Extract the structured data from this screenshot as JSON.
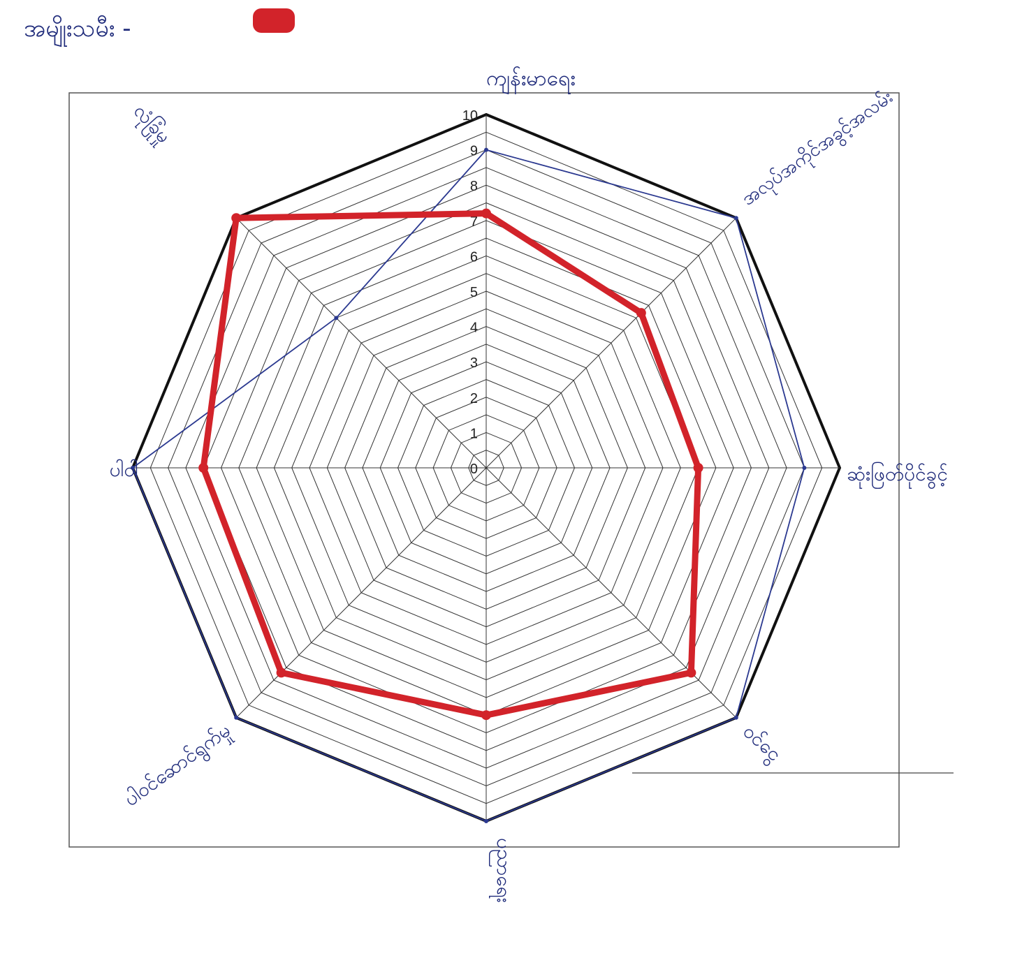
{
  "legend": {
    "label": "အမျိုးသမီး -",
    "swatch_color": "#d2232a"
  },
  "chart_data": {
    "type": "radar",
    "axes": [
      "ကျန်းမာရေး",
      "အလုပ်အကိုင်အခွင့်အလမ်း",
      "ဆုံးဖြတ်ပိုင်ခွင့်",
      "ဝင်ငွေ",
      "ပညာရေး",
      "ပါဝင်ဆောင်ရွက်မှု",
      "ပါဝါ",
      "လုံခြုံမှု"
    ],
    "rlim": [
      0,
      10
    ],
    "ticks": [
      "0",
      "1",
      "2",
      "3",
      "4",
      "5",
      "6",
      "7",
      "8",
      "9",
      "10"
    ],
    "series": [
      {
        "values": [
          7.2,
          6.2,
          6.0,
          8.2,
          7.0,
          8.2,
          8.0,
          10.0
        ],
        "color": "#d2232a",
        "style": "thick"
      },
      {
        "values": [
          9.0,
          10.0,
          9.0,
          10.0,
          10.0,
          10.0,
          10.0,
          6.0
        ],
        "color": "#2b3990",
        "style": "thin"
      }
    ],
    "outer_ring_color": "#111111",
    "grid_color": "#333333"
  }
}
